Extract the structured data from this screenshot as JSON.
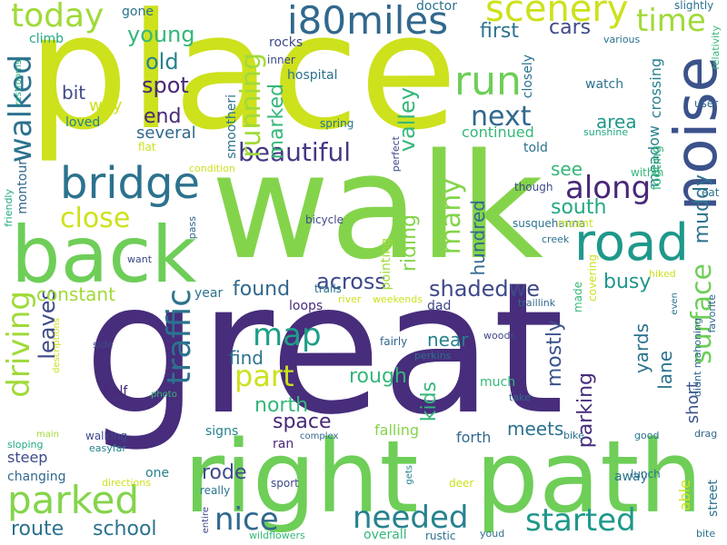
{
  "words": [
    {
      "text": "place",
      "color": "#cde11d"
    },
    {
      "text": "walk",
      "color": "#84d44b"
    },
    {
      "text": "great",
      "color": "#472d7b"
    },
    {
      "text": "right",
      "color": "#6ece58"
    },
    {
      "text": "path",
      "color": "#6ece58"
    },
    {
      "text": "back",
      "color": "#6ece58"
    },
    {
      "text": "noise",
      "color": "#3b528b"
    },
    {
      "text": "road",
      "color": "#1f988b"
    },
    {
      "text": "bridge",
      "color": "#2c728e"
    },
    {
      "text": "i80miles",
      "color": "#31688e"
    },
    {
      "text": "run",
      "color": "#6ece58"
    },
    {
      "text": "scenery",
      "color": "#cde11d"
    },
    {
      "text": "today",
      "color": "#a0da39"
    },
    {
      "text": "time",
      "color": "#a0da39"
    },
    {
      "text": "walked",
      "color": "#2c728e"
    },
    {
      "text": "beautiful",
      "color": "#443983"
    },
    {
      "text": "along",
      "color": "#482878"
    },
    {
      "text": "next",
      "color": "#31688e"
    },
    {
      "text": "running",
      "color": "#a0da39"
    },
    {
      "text": "surface",
      "color": "#6ece58"
    },
    {
      "text": "parked",
      "color": "#84d44b"
    },
    {
      "text": "driving",
      "color": "#a0da39"
    },
    {
      "text": "traffic",
      "color": "#2c728e"
    },
    {
      "text": "nice",
      "color": "#31688e"
    },
    {
      "text": "needed",
      "color": "#26828e"
    },
    {
      "text": "started",
      "color": "#1f988b"
    },
    {
      "text": "map",
      "color": "#1f9e89"
    },
    {
      "text": "part",
      "color": "#cde11d"
    },
    {
      "text": "close",
      "color": "#cde11d"
    },
    {
      "text": "many",
      "color": "#84d44b"
    },
    {
      "text": "across",
      "color": "#3e4989"
    },
    {
      "text": "shadedwe",
      "color": "#3e4989"
    },
    {
      "text": "young",
      "color": "#35b779"
    },
    {
      "text": "old",
      "color": "#26828e"
    },
    {
      "text": "spot",
      "color": "#482878"
    },
    {
      "text": "end",
      "color": "#482878"
    },
    {
      "text": "several",
      "color": "#31688e"
    },
    {
      "text": "bit",
      "color": "#3e4989"
    },
    {
      "text": "way",
      "color": "#cde11d"
    },
    {
      "text": "loved",
      "color": "#26828e"
    },
    {
      "text": "first",
      "color": "#2c728e"
    },
    {
      "text": "cars",
      "color": "#3e4989"
    },
    {
      "text": "marked",
      "color": "#35b779"
    },
    {
      "text": "valley",
      "color": "#35b779"
    },
    {
      "text": "area",
      "color": "#1f988b"
    },
    {
      "text": "continued",
      "color": "#35b779"
    },
    {
      "text": "see",
      "color": "#35b779"
    },
    {
      "text": "south",
      "color": "#22a884"
    },
    {
      "text": "leaves",
      "color": "#3e4989"
    },
    {
      "text": "constant",
      "color": "#a0da39"
    },
    {
      "text": "found",
      "color": "#31688e"
    },
    {
      "text": "route",
      "color": "#2c728e"
    },
    {
      "text": "school",
      "color": "#2c728e"
    },
    {
      "text": "rode",
      "color": "#3e4989"
    },
    {
      "text": "space",
      "color": "#482878"
    },
    {
      "text": "north",
      "color": "#35b779"
    },
    {
      "text": "find",
      "color": "#2c728e"
    },
    {
      "text": "rough",
      "color": "#35b779"
    },
    {
      "text": "near",
      "color": "#26828e"
    },
    {
      "text": "kids",
      "color": "#35b779"
    },
    {
      "text": "mostly",
      "color": "#3b528b"
    },
    {
      "text": "riding",
      "color": "#84d44b"
    },
    {
      "text": "hundred",
      "color": "#31688e"
    },
    {
      "text": "busy",
      "color": "#1f988b"
    },
    {
      "text": "muddy",
      "color": "#2c728e"
    },
    {
      "text": "lane",
      "color": "#2c728e"
    },
    {
      "text": "yards",
      "color": "#2c728e"
    },
    {
      "text": "short",
      "color": "#3b528b"
    },
    {
      "text": "parking",
      "color": "#472d7b"
    },
    {
      "text": "meadow",
      "color": "#26828e"
    },
    {
      "text": "crossing",
      "color": "#26828e"
    },
    {
      "text": "watch",
      "color": "#2c728e"
    },
    {
      "text": "hospital",
      "color": "#2c728e"
    },
    {
      "text": "rocks",
      "color": "#3e4989"
    },
    {
      "text": "gone",
      "color": "#2c728e"
    },
    {
      "text": "climb",
      "color": "#22a884"
    },
    {
      "text": "doctor",
      "color": "#2c728e"
    },
    {
      "text": "inner",
      "color": "#3e4989"
    },
    {
      "text": "told",
      "color": "#2c728e"
    },
    {
      "text": "though",
      "color": "#3e4989"
    },
    {
      "text": "footing",
      "color": "#35b779"
    },
    {
      "text": "within",
      "color": "#35b779"
    },
    {
      "text": "user",
      "color": "#31688e"
    },
    {
      "text": "various",
      "color": "#2c728e"
    },
    {
      "text": "slightly",
      "color": "#2c728e"
    },
    {
      "text": "relativity",
      "color": "#35b779"
    },
    {
      "text": "eat",
      "color": "#2c728e"
    },
    {
      "text": "sunshine",
      "color": "#22a884"
    },
    {
      "text": "spring",
      "color": "#2c728e"
    },
    {
      "text": "flat",
      "color": "#cde11d"
    },
    {
      "text": "condition",
      "color": "#cde11d"
    },
    {
      "text": "smootheri",
      "color": "#2c728e"
    },
    {
      "text": "closely",
      "color": "#2c728e"
    },
    {
      "text": "perfect",
      "color": "#3e4989"
    },
    {
      "text": "friendly",
      "color": "#22a884"
    },
    {
      "text": "restrooms",
      "color": "#22a884"
    },
    {
      "text": "montour",
      "color": "#31688e"
    },
    {
      "text": "pass",
      "color": "#31688e"
    },
    {
      "text": "want",
      "color": "#3e4989"
    },
    {
      "text": "bicycle",
      "color": "#3e4989"
    },
    {
      "text": "trails",
      "color": "#2c728e"
    },
    {
      "text": "river",
      "color": "#cde11d"
    },
    {
      "text": "weekends",
      "color": "#cde11d"
    },
    {
      "text": "creek",
      "color": "#2c728e"
    },
    {
      "text": "susquehanna",
      "color": "#2c728e"
    },
    {
      "text": "meant",
      "color": "#cde11d"
    },
    {
      "text": "pointing",
      "color": "#a0da39"
    },
    {
      "text": "traillink",
      "color": "#31688e"
    },
    {
      "text": "made",
      "color": "#35b779"
    },
    {
      "text": "covering",
      "color": "#cde11d"
    },
    {
      "text": "hiked",
      "color": "#cde11d"
    },
    {
      "text": "even",
      "color": "#2c728e"
    },
    {
      "text": "favorite",
      "color": "#31688e"
    },
    {
      "text": "didnt mahoning",
      "color": "#31688e"
    },
    {
      "text": "year",
      "color": "#2c728e"
    },
    {
      "text": "loops",
      "color": "#472d7b"
    },
    {
      "text": "dad",
      "color": "#3e4989"
    },
    {
      "text": "fairly",
      "color": "#31688e"
    },
    {
      "text": "perkins",
      "color": "#2c728e"
    },
    {
      "text": "woods",
      "color": "#3e4989"
    },
    {
      "text": "much",
      "color": "#35b779"
    },
    {
      "text": "take",
      "color": "#31688e"
    },
    {
      "text": "side",
      "color": "#3e4989"
    },
    {
      "text": "descriptions",
      "color": "#cde11d"
    },
    {
      "text": "half",
      "color": "#482878"
    },
    {
      "text": "photo",
      "color": "#35b779"
    },
    {
      "text": "signs",
      "color": "#26828e"
    },
    {
      "text": "walking",
      "color": "#3e4989"
    },
    {
      "text": "easyfar",
      "color": "#26828e"
    },
    {
      "text": "ran",
      "color": "#482878"
    },
    {
      "text": "complex",
      "color": "#31688e"
    },
    {
      "text": "falling",
      "color": "#84d44b"
    },
    {
      "text": "forth",
      "color": "#31688e"
    },
    {
      "text": "meets",
      "color": "#2c728e"
    },
    {
      "text": "bike",
      "color": "#2c728e"
    },
    {
      "text": "good",
      "color": "#2c728e"
    },
    {
      "text": "drag",
      "color": "#31688e"
    },
    {
      "text": "main",
      "color": "#a0da39"
    },
    {
      "text": "sloping",
      "color": "#22a884"
    },
    {
      "text": "steep",
      "color": "#3e4989"
    },
    {
      "text": "changing",
      "color": "#31688e"
    },
    {
      "text": "one",
      "color": "#26828e"
    },
    {
      "text": "directions",
      "color": "#cde11d"
    },
    {
      "text": "gets",
      "color": "#26828e"
    },
    {
      "text": "sport",
      "color": "#3e4989"
    },
    {
      "text": "deer",
      "color": "#cde11d"
    },
    {
      "text": "away",
      "color": "#2c728e"
    },
    {
      "text": "lunch",
      "color": "#2c728e"
    },
    {
      "text": "able",
      "color": "#cde11d"
    },
    {
      "text": "street",
      "color": "#2c728e"
    },
    {
      "text": "really",
      "color": "#2c728e"
    },
    {
      "text": "entire",
      "color": "#3e4989"
    },
    {
      "text": "wildflowers",
      "color": "#35b779"
    },
    {
      "text": "overall",
      "color": "#35b779"
    },
    {
      "text": "rustic",
      "color": "#2c728e"
    },
    {
      "text": "youd",
      "color": "#2c728e"
    },
    {
      "text": "bite",
      "color": "#2c728e"
    }
  ]
}
